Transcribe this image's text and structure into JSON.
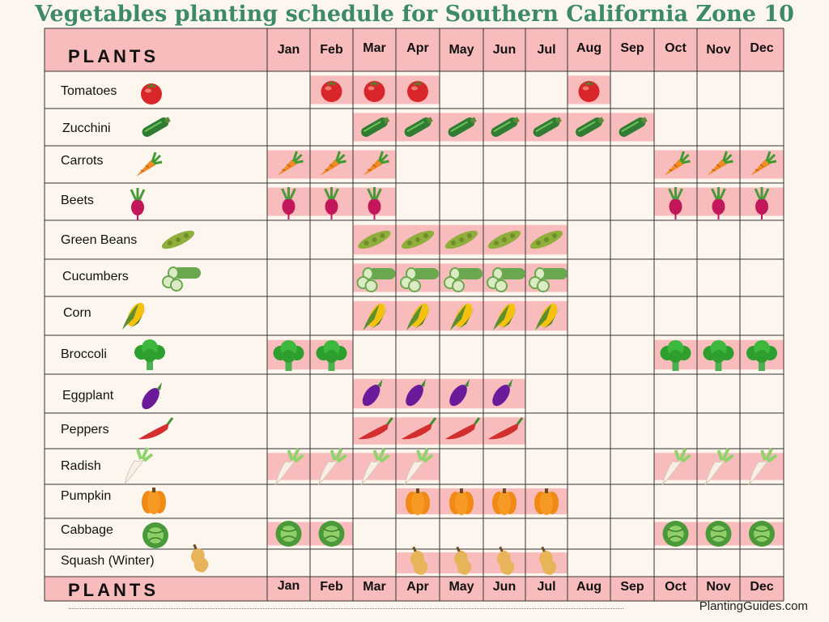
{
  "title": "Vegetables planting schedule for Southern California Zone 10",
  "header_label": "PLANTS",
  "footer_label": "PLANTS",
  "months": [
    "Jan",
    "Feb",
    "Mar",
    "Apr",
    "May",
    "Jun",
    "Jul",
    "Aug",
    "Sep",
    "Oct",
    "Nov",
    "Dec"
  ],
  "footer_text": "PlantingGuides.com",
  "colors": {
    "band": "#f8bcbc",
    "header": "#f8bcbc",
    "grid": "#333333",
    "title": "#3d8a6b"
  },
  "chart_data": {
    "type": "table",
    "rows": [
      {
        "name": "Tomatoes",
        "icon": "tomato-icon",
        "months": [
          "Feb",
          "Mar",
          "Apr",
          "Aug"
        ]
      },
      {
        "name": "Zucchini",
        "icon": "zucchini-icon",
        "months": [
          "Mar",
          "Apr",
          "May",
          "Jun",
          "Jul",
          "Aug",
          "Sep"
        ]
      },
      {
        "name": "Carrots",
        "icon": "carrot-icon",
        "months": [
          "Jan",
          "Feb",
          "Mar",
          "Oct",
          "Nov",
          "Dec"
        ]
      },
      {
        "name": "Beets",
        "icon": "beet-icon",
        "months": [
          "Jan",
          "Feb",
          "Mar",
          "Oct",
          "Nov",
          "Dec"
        ]
      },
      {
        "name": "Green Beans",
        "icon": "green-bean-icon",
        "months": [
          "Mar",
          "Apr",
          "May",
          "Jun",
          "Jul"
        ]
      },
      {
        "name": "Cucumbers",
        "icon": "cucumber-icon",
        "months": [
          "Mar",
          "Apr",
          "May",
          "Jun",
          "Jul"
        ]
      },
      {
        "name": "Corn",
        "icon": "corn-icon",
        "months": [
          "Mar",
          "Apr",
          "May",
          "Jun",
          "Jul"
        ]
      },
      {
        "name": "Broccoli",
        "icon": "broccoli-icon",
        "months": [
          "Jan",
          "Feb",
          "Oct",
          "Nov",
          "Dec"
        ]
      },
      {
        "name": "Eggplant",
        "icon": "eggplant-icon",
        "months": [
          "Mar",
          "Apr",
          "May",
          "Jun"
        ]
      },
      {
        "name": "Peppers",
        "icon": "pepper-icon",
        "months": [
          "Mar",
          "Apr",
          "May",
          "Jun"
        ]
      },
      {
        "name": "Radish",
        "icon": "radish-icon",
        "months": [
          "Jan",
          "Feb",
          "Mar",
          "Apr",
          "Oct",
          "Nov",
          "Dec"
        ]
      },
      {
        "name": "Pumpkin",
        "icon": "pumpkin-icon",
        "months": [
          "Apr",
          "May",
          "Jun",
          "Jul"
        ]
      },
      {
        "name": "Cabbage",
        "icon": "cabbage-icon",
        "months": [
          "Jan",
          "Feb",
          "Oct",
          "Nov",
          "Dec"
        ]
      },
      {
        "name": "Squash (Winter)",
        "icon": "squash-icon",
        "months": [
          "Apr",
          "May",
          "Jun",
          "Jul"
        ]
      }
    ]
  }
}
